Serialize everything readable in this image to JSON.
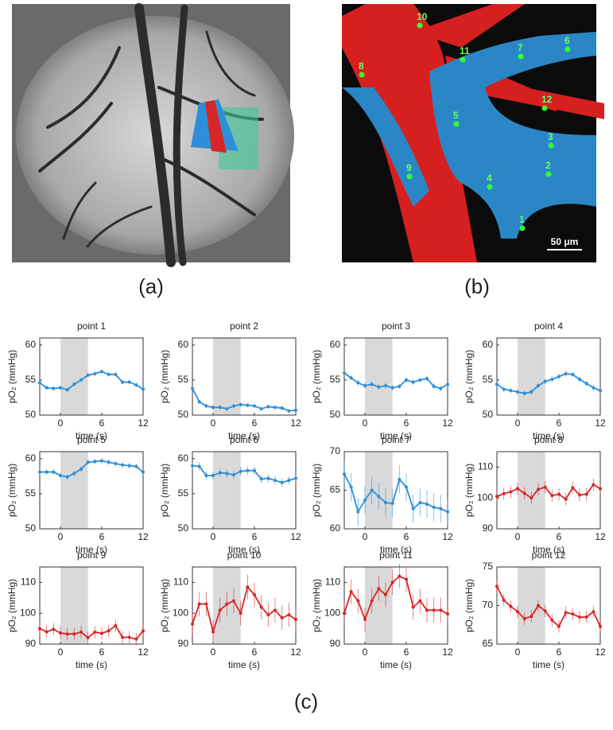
{
  "figure": {
    "labels": [
      "(a)",
      "(b)",
      "(c)"
    ]
  },
  "image_b": {
    "points": [
      "1",
      "2",
      "3",
      "4",
      "5",
      "6",
      "7",
      "8",
      "9",
      "10",
      "11",
      "12"
    ],
    "scale_bar": "50 μm"
  },
  "chart_data": [
    {
      "type": "line",
      "title": "point 1",
      "xlabel": "time (s)",
      "ylabel": "pO₂ (mmHg)",
      "x": [
        -3,
        -2,
        -1,
        0,
        1,
        2,
        3,
        4,
        5,
        6,
        7,
        8,
        9,
        10,
        11,
        12
      ],
      "xlim": [
        -3,
        12
      ],
      "xticks": [
        0,
        6,
        12
      ],
      "ylim": [
        50,
        61
      ],
      "yticks": [
        50,
        55,
        60
      ],
      "shade": [
        0,
        4
      ],
      "series": [
        {
          "color": "#2e8fd8",
          "values": [
            54.6,
            53.9,
            53.8,
            53.9,
            53.6,
            54.4,
            55.0,
            55.7,
            55.9,
            56.2,
            55.8,
            55.8,
            54.7,
            54.7,
            54.3,
            53.7
          ],
          "errors": [
            0.3,
            0.3,
            0.3,
            0.3,
            0.3,
            0.3,
            0.3,
            0.3,
            0.3,
            0.3,
            0.3,
            0.3,
            0.3,
            0.3,
            0.3,
            0.3
          ]
        }
      ]
    },
    {
      "type": "line",
      "title": "point 2",
      "xlabel": "time (s)",
      "ylabel": "pO₂ (mmHg)",
      "x": [
        -3,
        -2,
        -1,
        0,
        1,
        2,
        3,
        4,
        5,
        6,
        7,
        8,
        9,
        10,
        11,
        12
      ],
      "xlim": [
        -3,
        12
      ],
      "xticks": [
        0,
        6,
        12
      ],
      "ylim": [
        50,
        61
      ],
      "yticks": [
        50,
        55,
        60
      ],
      "shade": [
        0,
        4
      ],
      "series": [
        {
          "color": "#2e8fd8",
          "values": [
            53.8,
            51.9,
            51.3,
            51.1,
            51.1,
            50.9,
            51.3,
            51.5,
            51.4,
            51.3,
            50.9,
            51.2,
            51.1,
            51.0,
            50.6,
            50.7
          ],
          "errors": [
            0.3,
            0.3,
            0.3,
            0.3,
            0.3,
            0.3,
            0.3,
            0.3,
            0.3,
            0.3,
            0.3,
            0.3,
            0.3,
            0.3,
            0.3,
            0.3
          ]
        }
      ]
    },
    {
      "type": "line",
      "title": "point 3",
      "xlabel": "time (s)",
      "ylabel": "pO₂ (mmHg)",
      "x": [
        -3,
        -2,
        -1,
        0,
        1,
        2,
        3,
        4,
        5,
        6,
        7,
        8,
        9,
        10,
        11,
        12
      ],
      "xlim": [
        -3,
        12
      ],
      "xticks": [
        0,
        6,
        12
      ],
      "ylim": [
        50,
        61
      ],
      "yticks": [
        50,
        55,
        60
      ],
      "shade": [
        0,
        4
      ],
      "series": [
        {
          "color": "#2e8fd8",
          "values": [
            56.0,
            55.3,
            54.6,
            54.2,
            54.4,
            54.0,
            54.2,
            53.9,
            54.1,
            55.0,
            54.7,
            55.0,
            55.2,
            54.1,
            53.8,
            54.4
          ],
          "errors": [
            0.4,
            0.4,
            0.4,
            0.4,
            0.4,
            0.4,
            0.4,
            0.4,
            0.4,
            0.4,
            0.4,
            0.4,
            0.4,
            0.4,
            0.4,
            0.4
          ]
        }
      ]
    },
    {
      "type": "line",
      "title": "point 4",
      "xlabel": "time (s)",
      "ylabel": "pO₂ (mmHg)",
      "x": [
        -3,
        -2,
        -1,
        0,
        1,
        2,
        3,
        4,
        5,
        6,
        7,
        8,
        9,
        10,
        11,
        12
      ],
      "xlim": [
        -3,
        12
      ],
      "xticks": [
        0,
        6,
        12
      ],
      "ylim": [
        50,
        61
      ],
      "yticks": [
        50,
        55,
        60
      ],
      "shade": [
        0,
        4
      ],
      "series": [
        {
          "color": "#2e8fd8",
          "values": [
            54.4,
            53.7,
            53.5,
            53.3,
            53.1,
            53.3,
            54.2,
            54.8,
            55.1,
            55.5,
            55.9,
            55.8,
            55.1,
            54.5,
            53.9,
            53.5
          ],
          "errors": [
            0.4,
            0.4,
            0.4,
            0.4,
            0.4,
            0.4,
            0.4,
            0.4,
            0.4,
            0.4,
            0.4,
            0.4,
            0.4,
            0.4,
            0.4,
            0.4
          ]
        }
      ]
    },
    {
      "type": "line",
      "title": "point 5",
      "xlabel": "time (s)",
      "ylabel": "pO₂ (mmHg)",
      "x": [
        -3,
        -2,
        -1,
        0,
        1,
        2,
        3,
        4,
        5,
        6,
        7,
        8,
        9,
        10,
        11,
        12
      ],
      "xlim": [
        -3,
        12
      ],
      "xticks": [
        0,
        6,
        12
      ],
      "ylim": [
        50,
        61
      ],
      "yticks": [
        50,
        55,
        60
      ],
      "shade": [
        0,
        4
      ],
      "series": [
        {
          "color": "#2e8fd8",
          "values": [
            58.1,
            58.1,
            58.1,
            57.6,
            57.4,
            57.9,
            58.5,
            59.5,
            59.6,
            59.7,
            59.5,
            59.3,
            59.1,
            59.0,
            58.9,
            58.1
          ],
          "errors": [
            0.4,
            0.4,
            0.4,
            0.4,
            0.4,
            0.4,
            0.4,
            0.4,
            0.4,
            0.4,
            0.4,
            0.4,
            0.4,
            0.4,
            0.4,
            0.4
          ]
        }
      ]
    },
    {
      "type": "line",
      "title": "point 6",
      "xlabel": "time (s)",
      "ylabel": "pO₂ (mmHg)",
      "x": [
        -3,
        -2,
        -1,
        0,
        1,
        2,
        3,
        4,
        5,
        6,
        7,
        8,
        9,
        10,
        11,
        12
      ],
      "xlim": [
        -3,
        12
      ],
      "xticks": [
        0,
        6,
        12
      ],
      "ylim": [
        50,
        61
      ],
      "yticks": [
        50,
        55,
        60
      ],
      "shade": [
        0,
        4
      ],
      "series": [
        {
          "color": "#2e8fd8",
          "values": [
            59.0,
            58.9,
            57.6,
            57.6,
            58.0,
            57.9,
            57.7,
            58.2,
            58.3,
            58.3,
            57.1,
            57.2,
            56.9,
            56.6,
            56.9,
            57.2
          ],
          "errors": [
            0.6,
            0.6,
            0.6,
            0.6,
            0.6,
            0.6,
            0.6,
            0.6,
            0.6,
            0.6,
            0.6,
            0.6,
            0.6,
            0.6,
            0.6,
            0.6
          ]
        }
      ]
    },
    {
      "type": "line",
      "title": "point 7",
      "xlabel": "time (s)",
      "ylabel": "pO₂ (mmHg)",
      "x": [
        -3,
        -2,
        -1,
        0,
        1,
        2,
        3,
        4,
        5,
        6,
        7,
        8,
        9,
        10,
        11,
        12
      ],
      "xlim": [
        -3,
        12
      ],
      "xticks": [
        0,
        6,
        12
      ],
      "ylim": [
        60,
        70
      ],
      "yticks": [
        60,
        65,
        70
      ],
      "shade": [
        0,
        4
      ],
      "series": [
        {
          "color": "#2e8fd8",
          "values": [
            67.1,
            65.4,
            62.2,
            63.7,
            65.0,
            64.2,
            63.4,
            63.3,
            66.4,
            65.4,
            62.6,
            63.4,
            63.2,
            62.8,
            62.6,
            62.2
          ],
          "errors": [
            1.8,
            1.8,
            1.8,
            1.8,
            1.8,
            1.8,
            1.8,
            1.8,
            1.8,
            1.8,
            1.8,
            1.8,
            1.8,
            1.8,
            1.8,
            1.8
          ]
        }
      ]
    },
    {
      "type": "line",
      "title": "point 8",
      "xlabel": "time (s)",
      "ylabel": "pO₂ (mmHg)",
      "x": [
        -3,
        -2,
        -1,
        0,
        1,
        2,
        3,
        4,
        5,
        6,
        7,
        8,
        9,
        10,
        11,
        12
      ],
      "xlim": [
        -3,
        12
      ],
      "xticks": [
        0,
        6,
        12
      ],
      "ylim": [
        90,
        115
      ],
      "yticks": [
        90,
        100,
        110
      ],
      "shade": [
        0,
        4
      ],
      "series": [
        {
          "color": "#d62728",
          "values": [
            100.5,
            101.4,
            102,
            103,
            101.5,
            100,
            102.8,
            103.5,
            100.8,
            101.2,
            99.6,
            103.3,
            101,
            101.2,
            104.3,
            103
          ],
          "errors": [
            2,
            2,
            2,
            2,
            2,
            2,
            2,
            2,
            2,
            2,
            2,
            2,
            2,
            2,
            2,
            2
          ]
        }
      ]
    },
    {
      "type": "line",
      "title": "point 9",
      "xlabel": "time (s)",
      "ylabel": "pO₂ (mmHg)",
      "x": [
        -3,
        -2,
        -1,
        0,
        1,
        2,
        3,
        4,
        5,
        6,
        7,
        8,
        9,
        10,
        11,
        12
      ],
      "xlim": [
        -3,
        12
      ],
      "xticks": [
        0,
        6,
        12
      ],
      "ylim": [
        90,
        115
      ],
      "yticks": [
        90,
        100,
        110
      ],
      "shade": [
        0,
        4
      ],
      "series": [
        {
          "color": "#d62728",
          "values": [
            95,
            94,
            94.8,
            93.6,
            93.3,
            93.3,
            93.9,
            92.1,
            93.9,
            93.5,
            94.3,
            96,
            92.2,
            92.2,
            91.6,
            94.3
          ],
          "errors": [
            2,
            2,
            2,
            2,
            2,
            2,
            2,
            2,
            2,
            2,
            2,
            2,
            2,
            2,
            2,
            2
          ]
        }
      ]
    },
    {
      "type": "line",
      "title": "point 10",
      "xlabel": "time (s)",
      "ylabel": "pO₂ (mmHg)",
      "x": [
        -3,
        -2,
        -1,
        0,
        1,
        2,
        3,
        4,
        5,
        6,
        7,
        8,
        9,
        10,
        11,
        12
      ],
      "xlim": [
        -3,
        12
      ],
      "xticks": [
        0,
        6,
        12
      ],
      "ylim": [
        90,
        115
      ],
      "yticks": [
        90,
        100,
        110
      ],
      "shade": [
        0,
        4
      ],
      "series": [
        {
          "color": "#d62728",
          "values": [
            96.5,
            103,
            103,
            94,
            101,
            103,
            104,
            100,
            108.5,
            106,
            102,
            99.5,
            101,
            98.5,
            99.5,
            98
          ],
          "errors": [
            4,
            4,
            4,
            4,
            4,
            4,
            4,
            4,
            4,
            4,
            4,
            4,
            4,
            4,
            4,
            4
          ]
        }
      ]
    },
    {
      "type": "line",
      "title": "point 11",
      "xlabel": "time (s)",
      "ylabel": "pO₂ (mmHg)",
      "x": [
        -3,
        -2,
        -1,
        0,
        1,
        2,
        3,
        4,
        5,
        6,
        7,
        8,
        9,
        10,
        11,
        12
      ],
      "xlim": [
        -3,
        12
      ],
      "xticks": [
        0,
        6,
        12
      ],
      "ylim": [
        90,
        115
      ],
      "yticks": [
        90,
        100,
        110
      ],
      "shade": [
        0,
        4
      ],
      "series": [
        {
          "color": "#d62728",
          "values": [
            100,
            107,
            104,
            98,
            104,
            108,
            106,
            110,
            112,
            111,
            102,
            104,
            101,
            101,
            101,
            99.8
          ],
          "errors": [
            4,
            4,
            4,
            4,
            4,
            4,
            4,
            4,
            4,
            4,
            4,
            4,
            4,
            4,
            4,
            4
          ]
        }
      ]
    },
    {
      "type": "line",
      "title": "point 12",
      "xlabel": "time (s)",
      "ylabel": "pO₂ (mmHg)",
      "x": [
        -3,
        -2,
        -1,
        0,
        1,
        2,
        3,
        4,
        5,
        6,
        7,
        8,
        9,
        10,
        11,
        12
      ],
      "xlim": [
        -3,
        12
      ],
      "xticks": [
        0,
        6,
        12
      ],
      "ylim": [
        65,
        75
      ],
      "yticks": [
        65,
        70,
        75
      ],
      "shade": [
        0,
        4
      ],
      "series": [
        {
          "color": "#d62728",
          "values": [
            72.5,
            70.7,
            69.9,
            69.2,
            68.3,
            68.6,
            70.0,
            69.3,
            68.1,
            67.3,
            69.1,
            68.9,
            68.5,
            68.5,
            69.2,
            67.3
          ],
          "errors": [
            0.8,
            0.8,
            0.8,
            0.8,
            0.8,
            0.8,
            0.8,
            0.8,
            0.8,
            0.8,
            0.8,
            0.8,
            0.8,
            0.8,
            0.8,
            0.8
          ]
        }
      ]
    }
  ]
}
